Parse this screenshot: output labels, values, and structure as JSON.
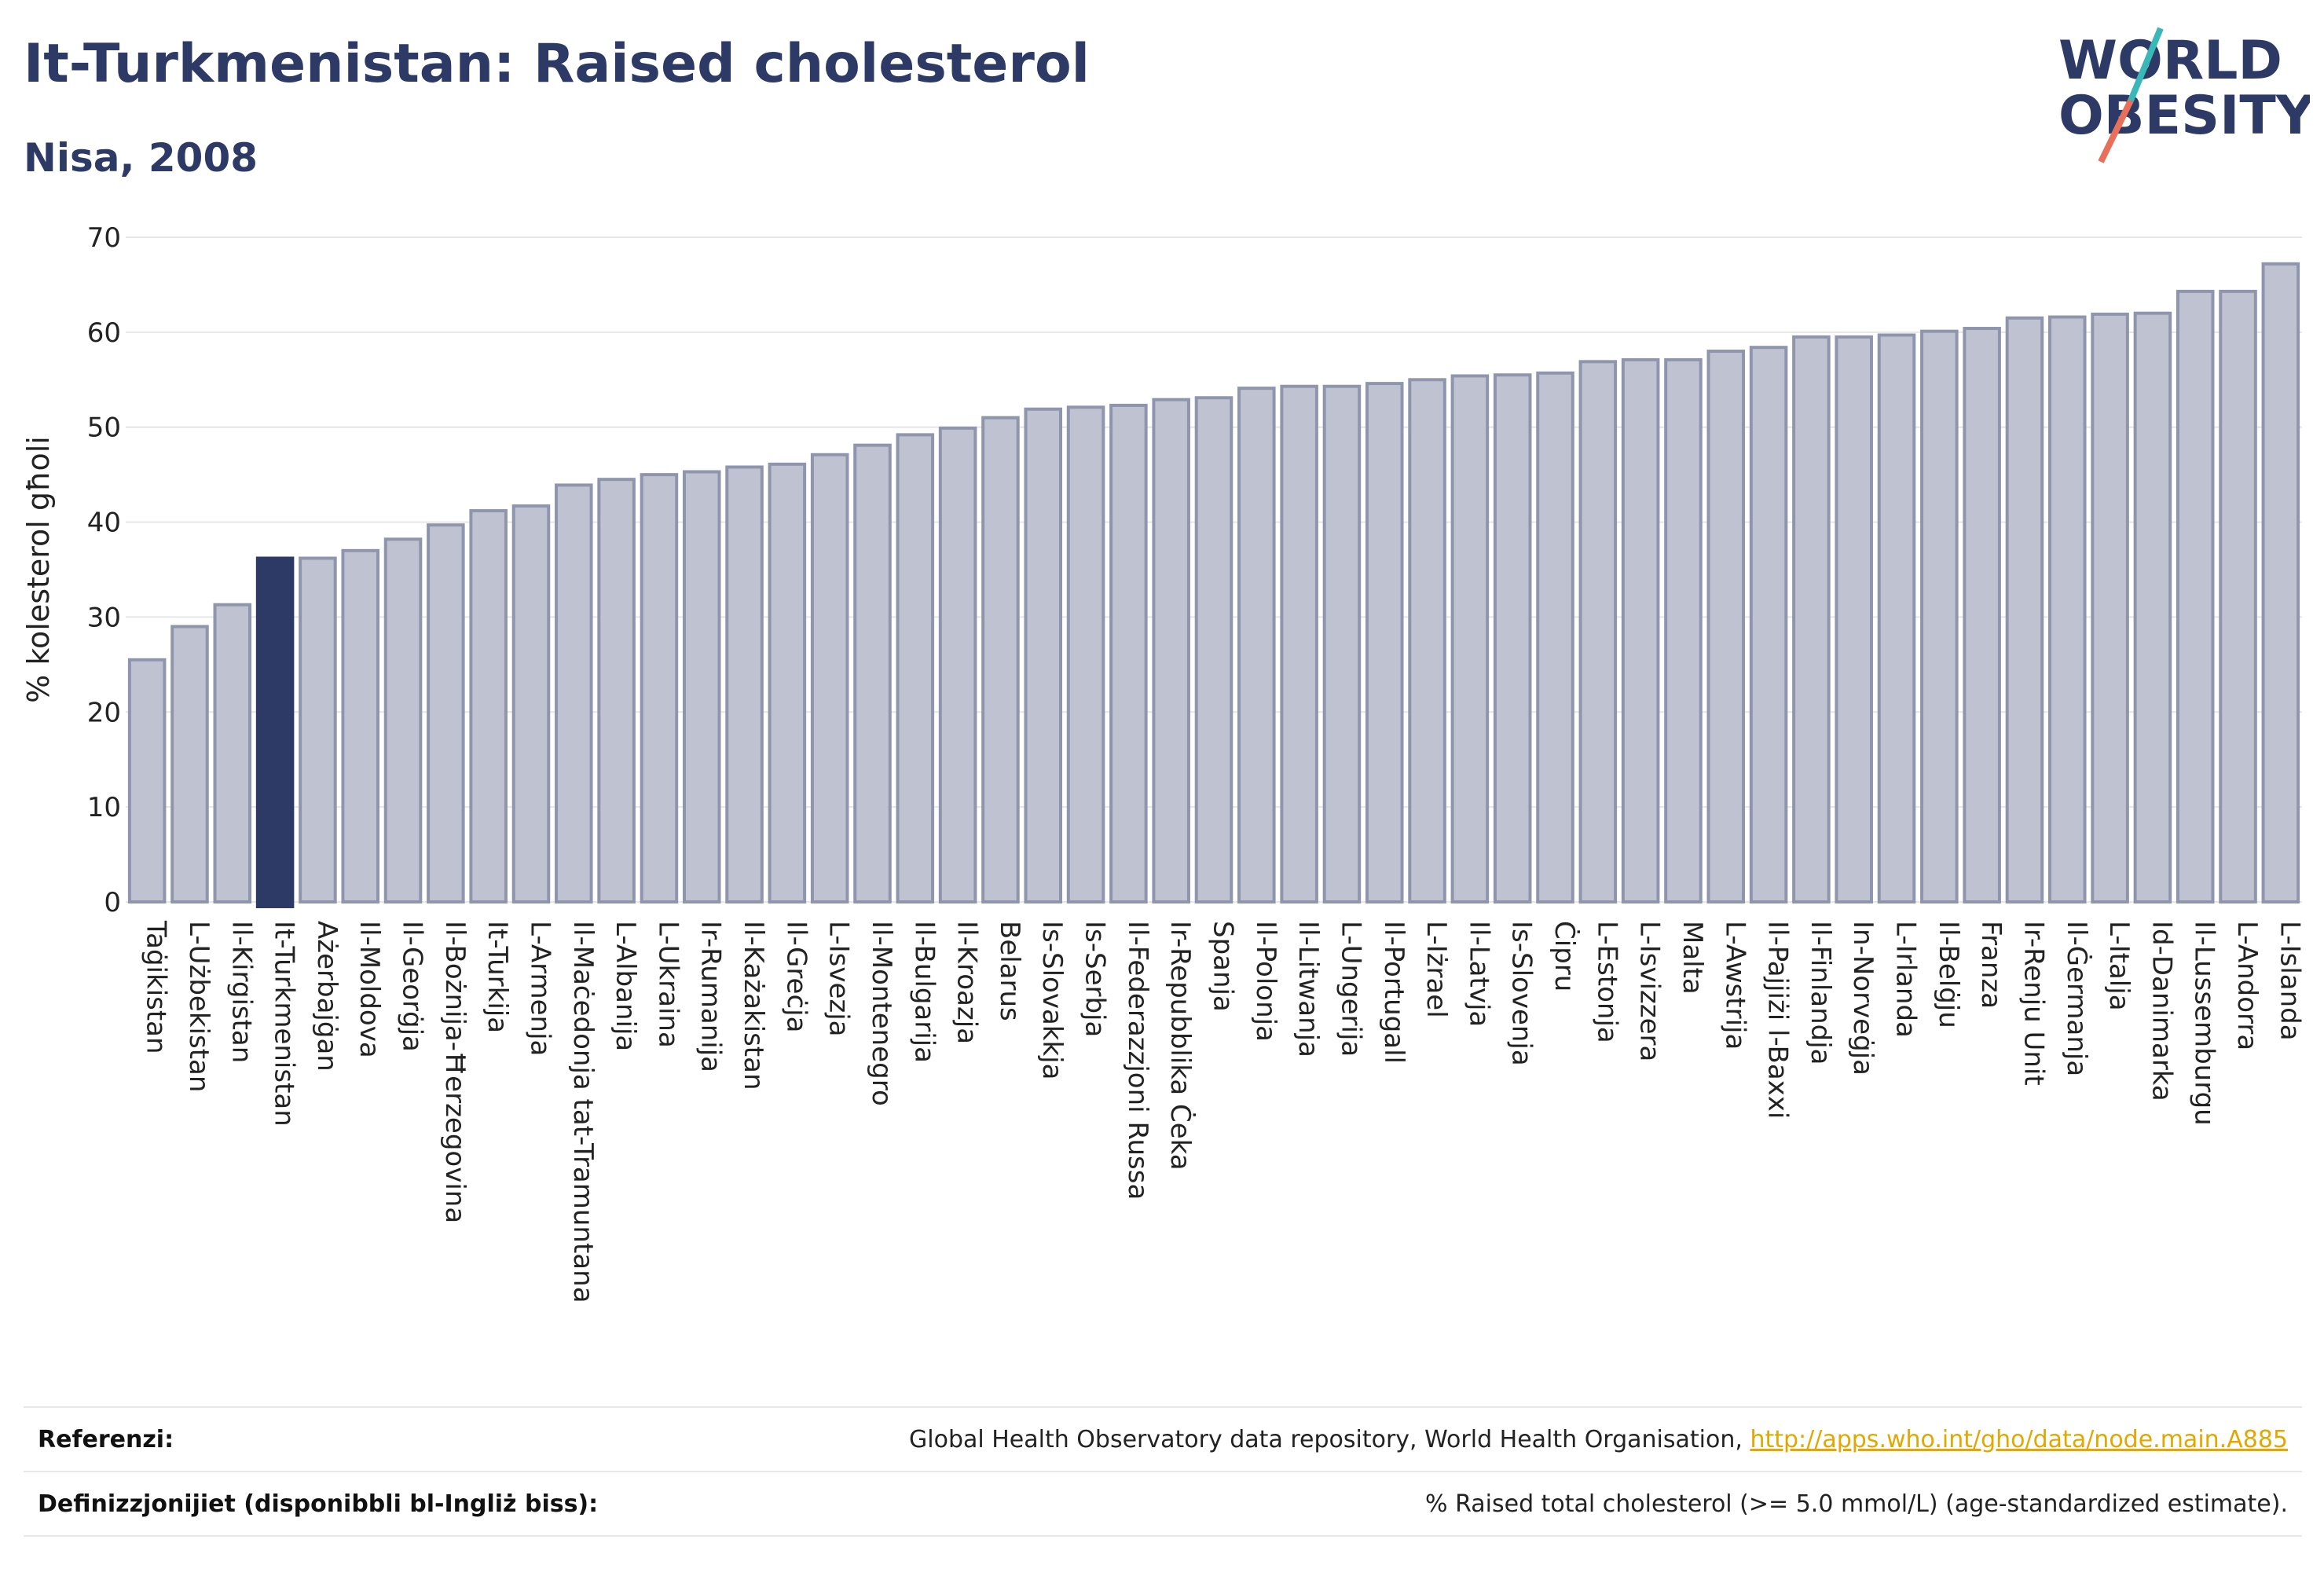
{
  "header": {
    "title": "It-Turkmenistan: Raised cholesterol",
    "subtitle": "Nisa, 2008"
  },
  "logo": {
    "line1": "WORLD",
    "line2": "OBESITY",
    "slash_colors": [
      "#3ab7b7",
      "#e8705a"
    ],
    "text_color": "#2e3a66"
  },
  "colors": {
    "bar": "#bfc3d1",
    "bar_border": "#8f95ad",
    "highlight": "#2e3a66",
    "grid": "#e6e6e6"
  },
  "chart_data": {
    "type": "bar",
    "ylabel": "% kolesterol għoli",
    "ylim": [
      0,
      70
    ],
    "yticks": [
      0,
      10,
      20,
      30,
      40,
      50,
      60,
      70
    ],
    "highlight": "It-Turkmenistan",
    "categories": [
      "Taġikistan",
      "L-Użbekistan",
      "Il-Kirgistan",
      "It-Turkmenistan",
      "Ażerbajġan",
      "Il-Moldova",
      "Il-Georġja",
      "Il-Bożnija-Ħerzegovina",
      "It-Turkija",
      "L-Armenja",
      "Il-Maċedonja tat-Tramuntana",
      "L-Albanija",
      "L-Ukraina",
      "Ir-Rumanija",
      "Il-Każakistan",
      "Il-Greċja",
      "L-Isvezja",
      "Il-Montenegro",
      "Il-Bulgarija",
      "Il-Kroazja",
      "Belarus",
      "Is-Slovakkja",
      "Is-Serbja",
      "Il-Federazzjoni Russa",
      "Ir-Repubblika Ċeka",
      "Spanja",
      "Il-Polonja",
      "Il-Litwanja",
      "L-Ungerija",
      "Il-Portugall",
      "L-Iżrael",
      "Il-Latvja",
      "Is-Slovenja",
      "Ċipru",
      "L-Estonja",
      "L-Isvizzera",
      "Malta",
      "L-Awstrija",
      "Il-Pajjiżi l-Baxxi",
      "Il-Finlandja",
      "In-Norveġja",
      "L-Irlanda",
      "Il-Belġju",
      "Franza",
      "Ir-Renju Unit",
      "Il-Ġermanja",
      "L-Italja",
      "Id-Danimarka",
      "Il-Lussemburgu",
      "L-Andorra",
      "L-Islanda"
    ],
    "values": [
      25.5,
      29,
      31.3,
      36.2,
      36.2,
      37,
      38.2,
      39.7,
      41.2,
      41.7,
      43.9,
      44.5,
      45,
      45.3,
      45.8,
      46.1,
      47.1,
      48.1,
      49.2,
      49.9,
      51,
      51.9,
      52.1,
      52.3,
      52.9,
      53.1,
      54.1,
      54.3,
      54.3,
      54.6,
      55,
      55.4,
      55.5,
      55.7,
      56.9,
      57.1,
      57.1,
      58,
      58.4,
      59.5,
      59.5,
      59.7,
      60.1,
      60.4,
      61.5,
      61.6,
      61.9,
      62,
      64.3,
      64.3,
      67.2
    ]
  },
  "footer": {
    "references_label": "Referenzi:",
    "references_text": "Global Health Observatory data repository, World Health Organisation, ",
    "references_link": "http://apps.who.int/gho/data/node.main.A885",
    "definitions_label": "Definizzjonijiet (disponibbli bl-Ingliż biss):",
    "definitions_text": "% Raised total cholesterol (>= 5.0 mmol/L) (age-standardized estimate)."
  }
}
